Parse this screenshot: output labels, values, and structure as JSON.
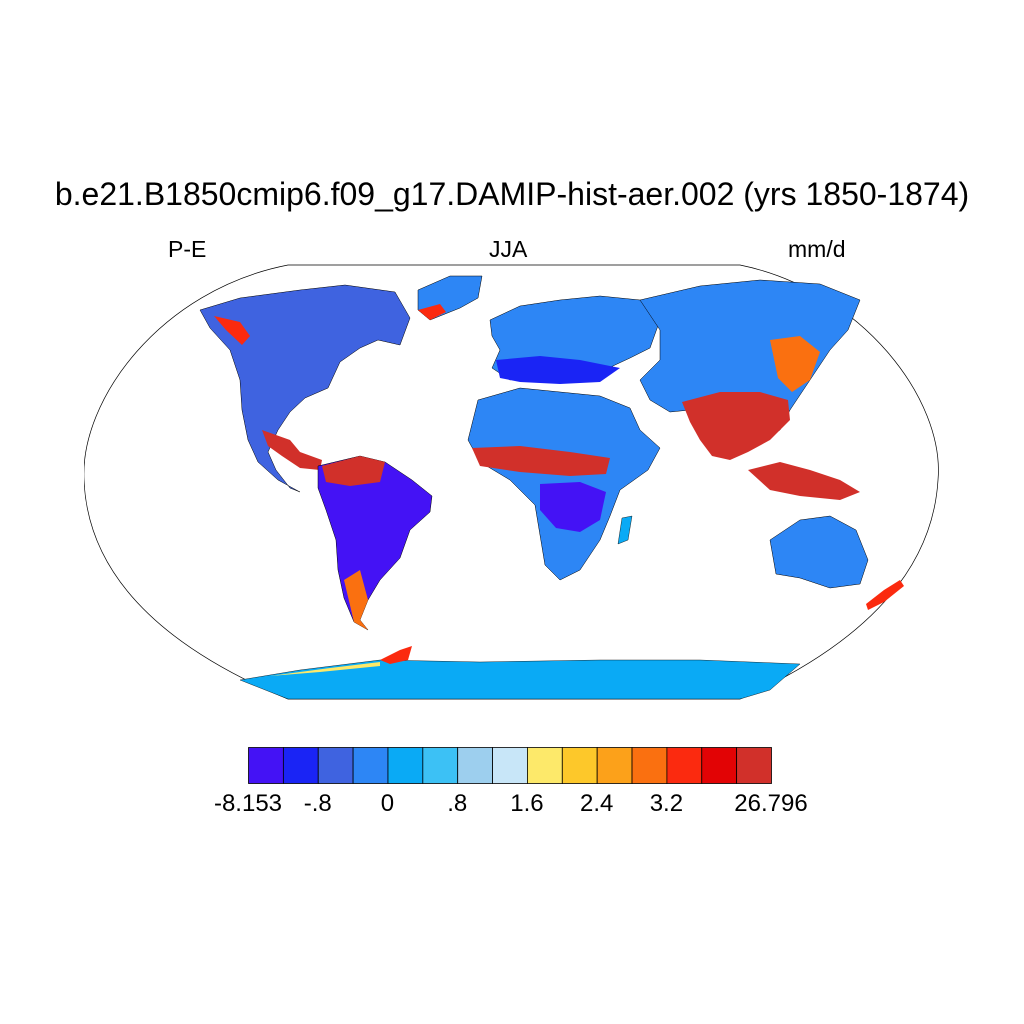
{
  "title": "b.e21.B1850cmip6.f09_g17.DAMIP-hist-aer.002 (yrs 1850-1874)",
  "subtitles": {
    "left": "P-E",
    "center": "JJA",
    "right": "mm/d"
  },
  "map": {
    "projection": "Robinson",
    "variable": "P-E",
    "season": "JJA",
    "units": "mm/d",
    "ocean_color": "#ffffff"
  },
  "colorbar": {
    "colors": [
      "#4412f5",
      "#1a24f5",
      "#3f63e0",
      "#2d86f5",
      "#0aaaf5",
      "#3cc1f5",
      "#9dcfee",
      "#c8e6f8",
      "#fde96a",
      "#fdc82a",
      "#fca11a",
      "#fa7010",
      "#fb2a0f",
      "#e20305",
      "#d1302a"
    ],
    "labels": [
      "-8.153",
      "-.8",
      "0",
      ".8",
      "1.6",
      "2.4",
      "3.2",
      "26.796"
    ],
    "label_boundaries": [
      0,
      2,
      4,
      6,
      8,
      10,
      12,
      15
    ]
  }
}
